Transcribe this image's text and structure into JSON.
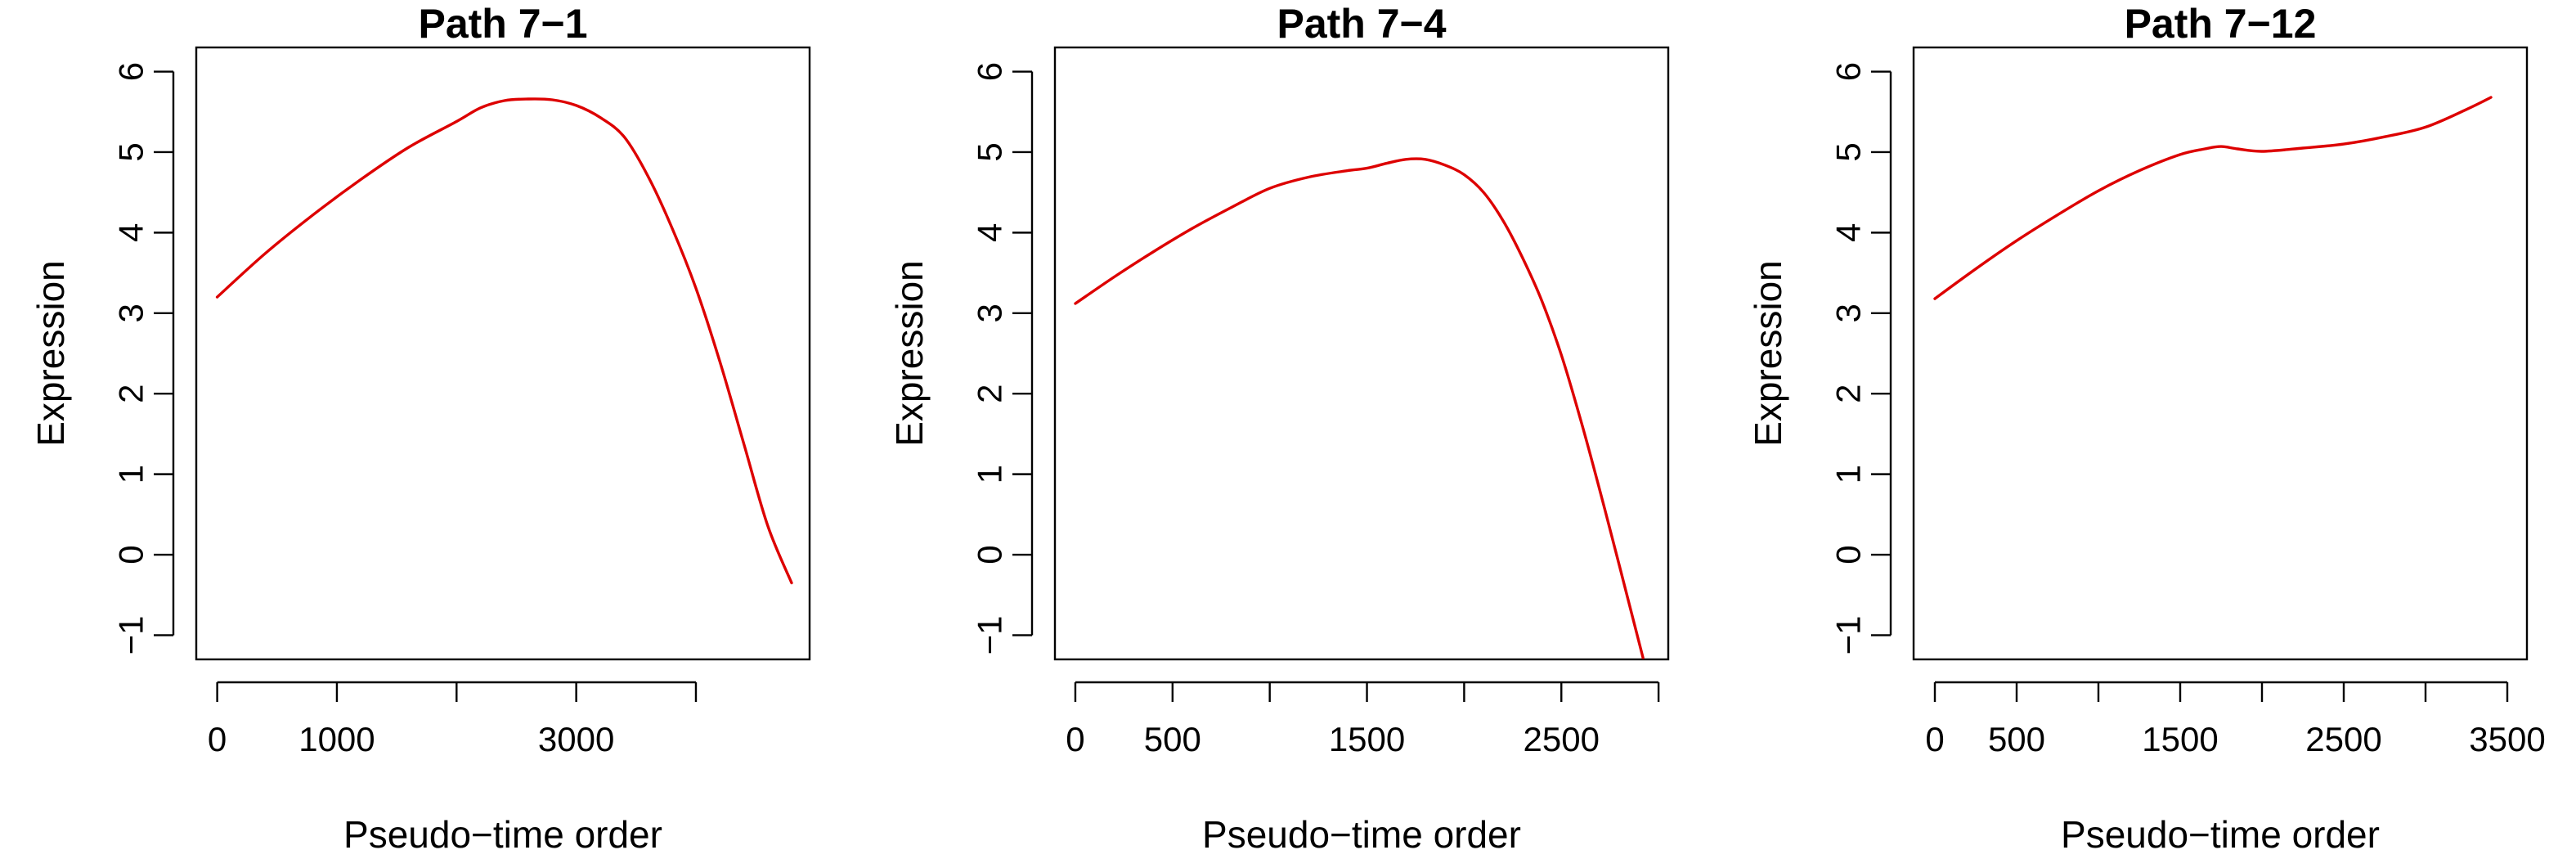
{
  "chart_data": [
    {
      "type": "line",
      "title": "Path 7−1",
      "xlabel": "Pseudo−time order",
      "ylabel": "Expression",
      "xlim": [
        -175,
        4950
      ],
      "ylim": [
        -1.3,
        6.3
      ],
      "x_ticks": [
        0,
        1000,
        2000,
        3000,
        4000
      ],
      "x_tick_labels": [
        "0",
        "1000",
        "",
        "3000",
        ""
      ],
      "y_ticks": [
        -1,
        0,
        1,
        2,
        3,
        4,
        5,
        6
      ],
      "y_tick_labels": [
        "−1",
        "0",
        "1",
        "2",
        "3",
        "4",
        "5",
        "6"
      ],
      "grid": false,
      "series": [
        {
          "color": "#dd0000",
          "x": [
            0,
            400,
            800,
            1200,
            1600,
            2000,
            2200,
            2400,
            2600,
            2800,
            3000,
            3200,
            3400,
            3600,
            3800,
            4000,
            4200,
            4400,
            4600,
            4800
          ],
          "y": [
            3.2,
            3.74,
            4.22,
            4.66,
            5.06,
            5.38,
            5.55,
            5.64,
            5.66,
            5.65,
            5.58,
            5.43,
            5.19,
            4.7,
            4.06,
            3.31,
            2.4,
            1.38,
            0.36,
            -0.35
          ]
        }
      ]
    },
    {
      "type": "line",
      "title": "Path 7−4",
      "xlabel": "Pseudo−time order",
      "ylabel": "Expression",
      "xlim": [
        -105,
        3050
      ],
      "ylim": [
        -1.3,
        6.3
      ],
      "x_ticks": [
        0,
        500,
        1000,
        1500,
        2000,
        2500,
        3000
      ],
      "x_tick_labels": [
        "0",
        "500",
        "",
        "1500",
        "",
        "2500",
        ""
      ],
      "y_ticks": [
        -1,
        0,
        1,
        2,
        3,
        4,
        5,
        6
      ],
      "y_tick_labels": [
        "−1",
        "0",
        "1",
        "2",
        "3",
        "4",
        "5",
        "6"
      ],
      "grid": false,
      "series": [
        {
          "color": "#dd0000",
          "x": [
            0,
            200,
            400,
            600,
            800,
            1000,
            1200,
            1400,
            1500,
            1600,
            1700,
            1800,
            1900,
            2000,
            2100,
            2200,
            2300,
            2400,
            2500,
            2600,
            2700,
            2800,
            2920
          ],
          "y": [
            3.12,
            3.45,
            3.76,
            4.05,
            4.31,
            4.55,
            4.69,
            4.77,
            4.8,
            4.86,
            4.91,
            4.91,
            4.84,
            4.72,
            4.5,
            4.15,
            3.69,
            3.15,
            2.48,
            1.67,
            0.78,
            -0.15,
            -1.28
          ]
        }
      ]
    },
    {
      "type": "line",
      "title": "Path 7−12",
      "xlabel": "Pseudo−time order",
      "ylabel": "Expression",
      "xlim": [
        -130,
        3620
      ],
      "ylim": [
        -1.3,
        6.3
      ],
      "x_ticks": [
        0,
        500,
        1000,
        1500,
        2000,
        2500,
        3000,
        3500
      ],
      "x_tick_labels": [
        "0",
        "500",
        "",
        "1500",
        "",
        "2500",
        "",
        "3500"
      ],
      "y_ticks": [
        -1,
        0,
        1,
        2,
        3,
        4,
        5,
        6
      ],
      "y_tick_labels": [
        "−1",
        "0",
        "1",
        "2",
        "3",
        "4",
        "5",
        "6"
      ],
      "grid": false,
      "series": [
        {
          "color": "#dd0000",
          "x": [
            0,
            250,
            500,
            750,
            1000,
            1250,
            1500,
            1650,
            1750,
            1850,
            2000,
            2250,
            2500,
            2750,
            3000,
            3250,
            3400
          ],
          "y": [
            3.18,
            3.55,
            3.9,
            4.22,
            4.52,
            4.77,
            4.97,
            5.04,
            5.07,
            5.04,
            5.01,
            5.05,
            5.1,
            5.19,
            5.31,
            5.53,
            5.68
          ]
        }
      ]
    }
  ]
}
